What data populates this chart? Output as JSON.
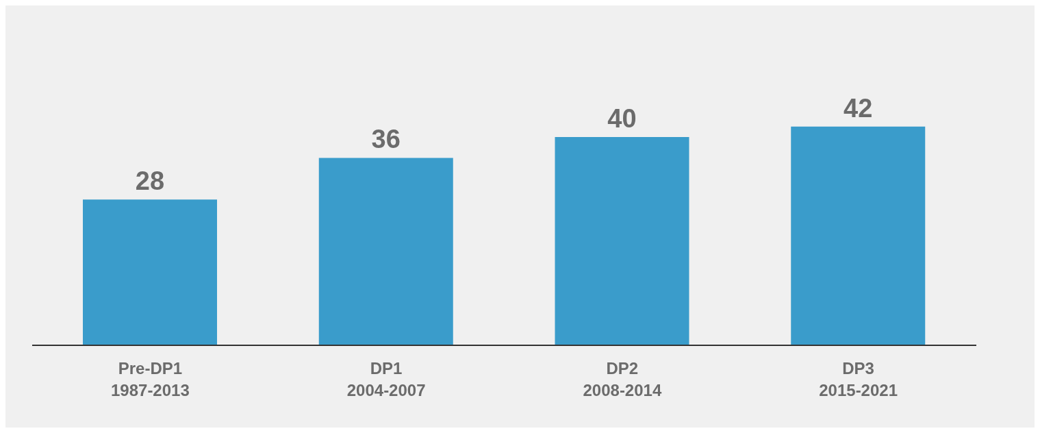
{
  "chart_data": {
    "type": "bar",
    "categories": [
      "Pre-DP1\n1987-2013",
      "DP1\n2004-2007",
      "DP2\n2008-2014",
      "DP3\n2015-2021"
    ],
    "values": [
      28,
      36,
      40,
      42
    ],
    "color": "#3a9ccb",
    "data_labels": true,
    "grid": false,
    "legend": false
  }
}
